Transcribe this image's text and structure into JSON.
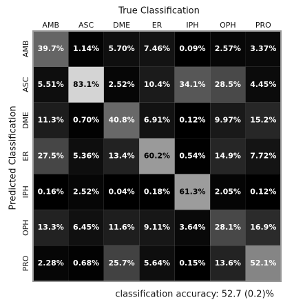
{
  "chart_data": {
    "type": "heatmap",
    "title": "True Classification",
    "y_label": "Predicted Classification",
    "annotation": "classification accuracy: 52.7 (0.2)%",
    "x_categories": [
      "AMB",
      "ASC",
      "DME",
      "ER",
      "IPH",
      "OPH",
      "PRO"
    ],
    "y_categories": [
      "AMB",
      "ASC",
      "DME",
      "ER",
      "IPH",
      "OPH",
      "PRO"
    ],
    "zlim": [
      0,
      100
    ],
    "values": [
      [
        39.7,
        1.14,
        5.7,
        7.46,
        0.09,
        2.57,
        3.37
      ],
      [
        5.51,
        83.1,
        2.52,
        10.4,
        34.1,
        28.5,
        4.45
      ],
      [
        11.3,
        0.7,
        40.8,
        6.91,
        0.12,
        9.97,
        15.2
      ],
      [
        27.5,
        5.36,
        13.4,
        60.2,
        0.54,
        14.9,
        7.72
      ],
      [
        0.16,
        2.52,
        0.04,
        0.18,
        61.3,
        2.05,
        0.12
      ],
      [
        13.3,
        6.45,
        11.6,
        9.11,
        3.64,
        28.1,
        16.9
      ],
      [
        2.28,
        0.68,
        25.7,
        5.64,
        0.15,
        13.6,
        52.1
      ]
    ],
    "value_labels": [
      [
        "39.7%",
        "1.14%",
        "5.70%",
        "7.46%",
        "0.09%",
        "2.57%",
        "3.37%"
      ],
      [
        "5.51%",
        "83.1%",
        "2.52%",
        "10.4%",
        "34.1%",
        "28.5%",
        "4.45%"
      ],
      [
        "11.3%",
        "0.70%",
        "40.8%",
        "6.91%",
        "0.12%",
        "9.97%",
        "15.2%"
      ],
      [
        "27.5%",
        "5.36%",
        "13.4%",
        "60.2%",
        "0.54%",
        "14.9%",
        "7.72%"
      ],
      [
        "0.16%",
        "2.52%",
        "0.04%",
        "0.18%",
        "61.3%",
        "2.05%",
        "0.12%"
      ],
      [
        "13.3%",
        "6.45%",
        "11.6%",
        "9.11%",
        "3.64%",
        "28.1%",
        "16.9%"
      ],
      [
        "2.28%",
        "0.68%",
        "25.7%",
        "5.64%",
        "0.15%",
        "13.6%",
        "52.1%"
      ]
    ]
  }
}
